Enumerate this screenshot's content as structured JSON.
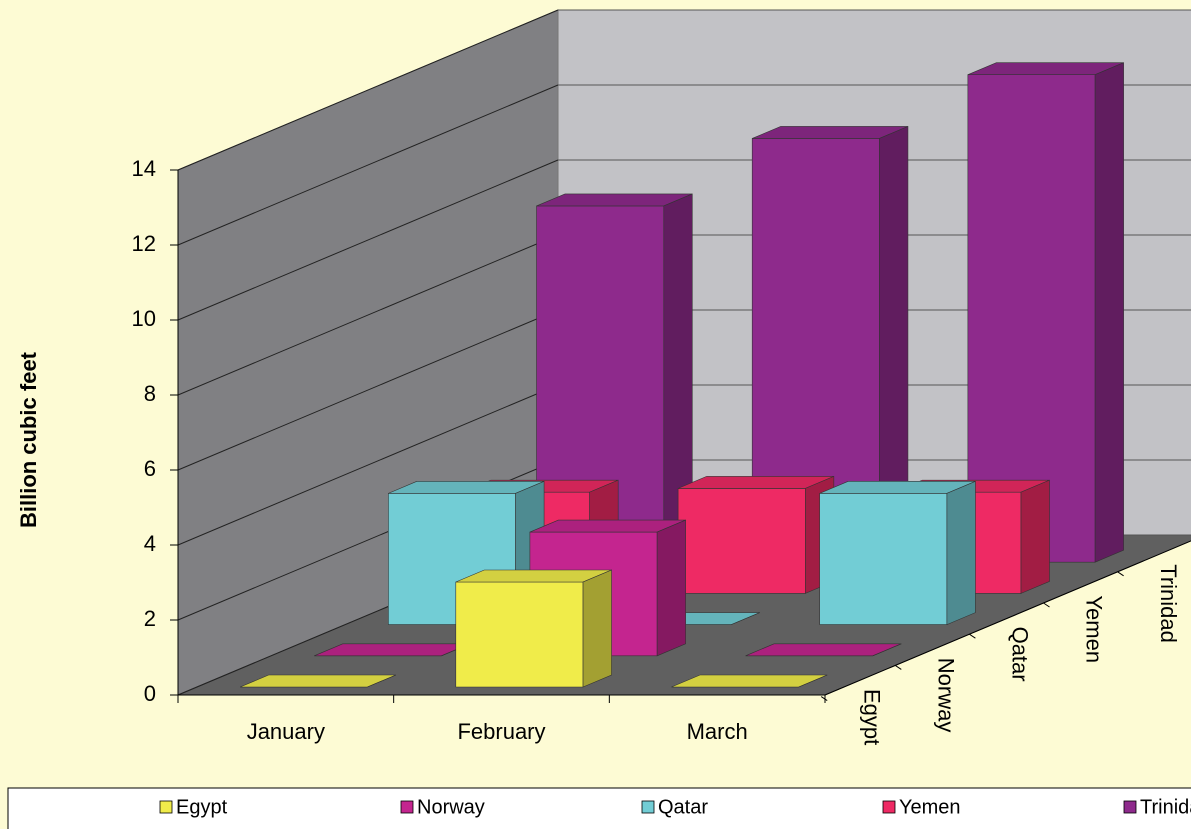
{
  "chart_data": {
    "type": "bar3d",
    "y_label": "Billion cubic feet",
    "categories": [
      "January",
      "February",
      "March"
    ],
    "series": [
      {
        "name": "Egypt",
        "color": "#f0ec4a",
        "values": [
          0,
          2.8,
          0
        ]
      },
      {
        "name": "Norway",
        "color": "#c4258f",
        "values": [
          0,
          3.3,
          0
        ]
      },
      {
        "name": "Qatar",
        "color": "#72cdd5",
        "values": [
          3.5,
          0,
          3.5
        ]
      },
      {
        "name": "Yemen",
        "color": "#ee2a64",
        "values": [
          2.7,
          2.8,
          2.7
        ]
      },
      {
        "name": "Trinidad",
        "color": "#8e2a8c",
        "values": [
          9.5,
          11.3,
          13.0
        ]
      }
    ],
    "ylim": [
      0,
      14
    ],
    "yticks": [
      0,
      2,
      4,
      6,
      8,
      10,
      12,
      14
    ],
    "grid": true,
    "legend": "bottom"
  }
}
